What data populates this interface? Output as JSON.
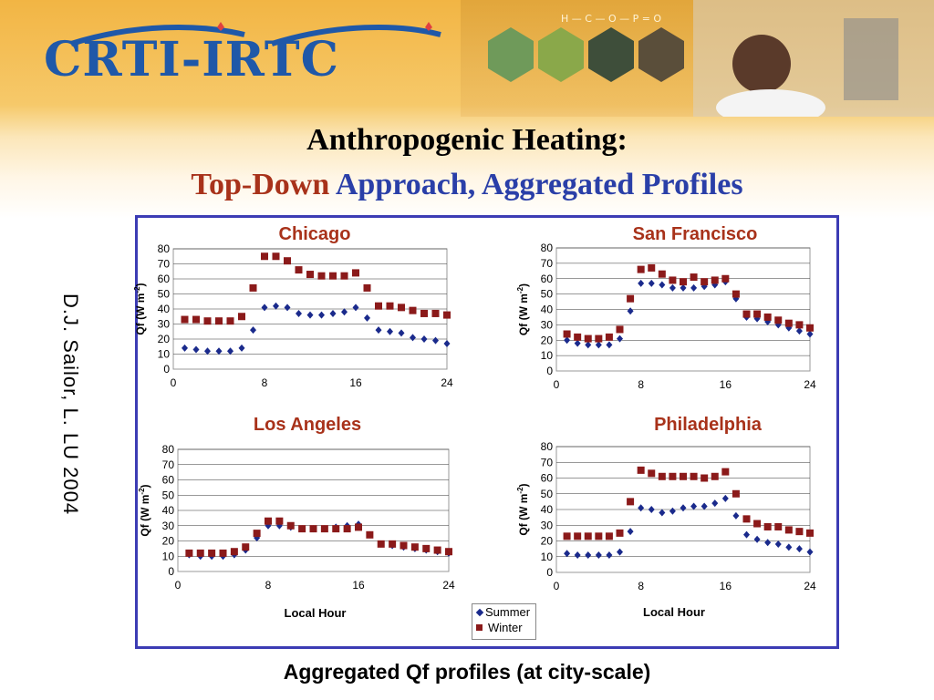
{
  "header": {
    "logo_text": "CRTI-IRTC",
    "title_line1": "Anthropogenic Heating:",
    "title_line2_part1": "Top-Down",
    "title_line2_part2": "Approach, Aggregated Profiles"
  },
  "side_label": "D.J. Sailor, L.  LU  2004",
  "caption": "Aggregated Qf profiles (at city-scale)",
  "legend": {
    "summer": "Summer",
    "winter": "Winter"
  },
  "colors": {
    "summer": "#1a2a8c",
    "winter": "#8b1a1a",
    "frame": "#3c3cb4",
    "city_title": "#a8321a"
  },
  "chart_data": [
    {
      "type": "scatter",
      "title": "Chicago",
      "ylabel": "Qf (W m-2)",
      "xlabel": "",
      "xticks": [
        0,
        8,
        16,
        24
      ],
      "yticks": [
        0,
        10,
        20,
        30,
        40,
        50,
        60,
        70,
        80
      ],
      "xlim": [
        0,
        24
      ],
      "ylim": [
        0,
        80
      ],
      "grid": "horizontal",
      "x": [
        1,
        2,
        3,
        4,
        5,
        6,
        7,
        8,
        9,
        10,
        11,
        12,
        13,
        14,
        15,
        16,
        17,
        18,
        19,
        20,
        21,
        22,
        23,
        24
      ],
      "series": [
        {
          "name": "Summer",
          "marker": "diamond",
          "values": [
            14,
            13,
            12,
            12,
            12,
            14,
            26,
            41,
            42,
            41,
            37,
            36,
            36,
            37,
            38,
            41,
            34,
            26,
            25,
            24,
            21,
            20,
            19,
            17
          ]
        },
        {
          "name": "Winter",
          "marker": "square",
          "values": [
            33,
            33,
            32,
            32,
            32,
            35,
            54,
            75,
            75,
            72,
            66,
            63,
            62,
            62,
            62,
            64,
            54,
            42,
            42,
            41,
            39,
            37,
            37,
            36
          ]
        }
      ]
    },
    {
      "type": "scatter",
      "title": "San Francisco",
      "ylabel": "Qf (W m-2)",
      "xlabel": "",
      "xticks": [
        0,
        8,
        16,
        24
      ],
      "yticks": [
        0,
        10,
        20,
        30,
        40,
        50,
        60,
        70,
        80
      ],
      "xlim": [
        0,
        24
      ],
      "ylim": [
        0,
        80
      ],
      "grid": "horizontal",
      "x": [
        1,
        2,
        3,
        4,
        5,
        6,
        7,
        8,
        9,
        10,
        11,
        12,
        13,
        14,
        15,
        16,
        17,
        18,
        19,
        20,
        21,
        22,
        23,
        24
      ],
      "series": [
        {
          "name": "Summer",
          "marker": "diamond",
          "values": [
            20,
            18,
            17,
            17,
            17,
            21,
            39,
            57,
            57,
            56,
            54,
            54,
            54,
            55,
            56,
            58,
            47,
            35,
            34,
            32,
            30,
            28,
            26,
            24
          ]
        },
        {
          "name": "Winter",
          "marker": "square",
          "values": [
            24,
            22,
            21,
            21,
            22,
            27,
            47,
            66,
            67,
            63,
            59,
            58,
            61,
            58,
            59,
            60,
            50,
            37,
            37,
            35,
            33,
            31,
            30,
            28
          ]
        }
      ]
    },
    {
      "type": "scatter",
      "title": "Los Angeles",
      "ylabel": "Qf (W m-2)",
      "xlabel": "Local Hour",
      "xticks": [
        0,
        8,
        16,
        24
      ],
      "yticks": [
        0,
        10,
        20,
        30,
        40,
        50,
        60,
        70,
        80
      ],
      "xlim": [
        0,
        24
      ],
      "ylim": [
        0,
        80
      ],
      "grid": "horizontal",
      "x": [
        1,
        2,
        3,
        4,
        5,
        6,
        7,
        8,
        9,
        10,
        11,
        12,
        13,
        14,
        15,
        16,
        17,
        18,
        19,
        20,
        21,
        22,
        23,
        24
      ],
      "series": [
        {
          "name": "Summer",
          "marker": "diamond",
          "values": [
            11,
            10,
            10,
            10,
            11,
            14,
            22,
            30,
            30,
            29,
            28,
            28,
            28,
            29,
            30,
            31,
            24,
            18,
            17,
            16,
            15,
            14,
            13,
            12
          ]
        },
        {
          "name": "Winter",
          "marker": "square",
          "values": [
            12,
            12,
            12,
            12,
            13,
            16,
            25,
            33,
            33,
            30,
            28,
            28,
            28,
            28,
            28,
            29,
            24,
            18,
            18,
            17,
            16,
            15,
            14,
            13
          ]
        }
      ]
    },
    {
      "type": "scatter",
      "title": "Philadelphia",
      "ylabel": "Qf (W m-2)",
      "xlabel": "Local Hour",
      "xticks": [
        0,
        8,
        16,
        24
      ],
      "yticks": [
        0,
        10,
        20,
        30,
        40,
        50,
        60,
        70,
        80
      ],
      "xlim": [
        0,
        24
      ],
      "ylim": [
        0,
        80
      ],
      "grid": "horizontal",
      "x": [
        1,
        2,
        3,
        4,
        5,
        6,
        7,
        8,
        9,
        10,
        11,
        12,
        13,
        14,
        15,
        16,
        17,
        18,
        19,
        20,
        21,
        22,
        23,
        24
      ],
      "series": [
        {
          "name": "Summer",
          "marker": "diamond",
          "values": [
            12,
            11,
            11,
            11,
            11,
            13,
            26,
            41,
            40,
            38,
            39,
            41,
            42,
            42,
            44,
            47,
            36,
            24,
            21,
            19,
            18,
            16,
            15,
            13
          ]
        },
        {
          "name": "Winter",
          "marker": "square",
          "values": [
            23,
            23,
            23,
            23,
            23,
            25,
            45,
            65,
            63,
            61,
            61,
            61,
            61,
            60,
            61,
            64,
            50,
            34,
            31,
            29,
            29,
            27,
            26,
            25
          ]
        }
      ]
    }
  ]
}
